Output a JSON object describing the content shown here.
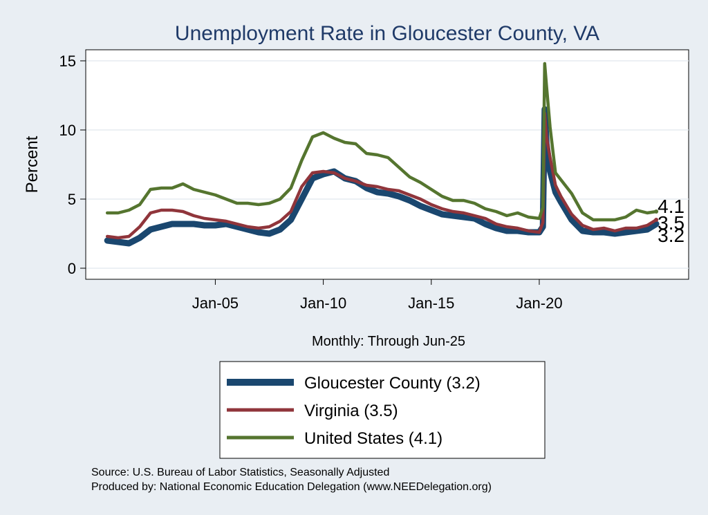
{
  "chart_data": {
    "type": "line",
    "title": "Unemployment Rate in Gloucester  County, VA",
    "ylabel": "Percent",
    "xnote": "Monthly: Through Jun-25",
    "x_ticks": [
      "Jan-05",
      "Jan-10",
      "Jan-15",
      "Jan-20"
    ],
    "y_ticks": [
      0,
      5,
      10,
      15
    ],
    "xlim": [
      "2000-01",
      "2025-06"
    ],
    "ylim": [
      -0.8,
      15.8
    ],
    "grid": true,
    "legend_position": "bottom",
    "source_lines": [
      "Source: U.S. Bureau of Labor Statistics, Seasonally Adjusted",
      "Produced by: National Economic Education Delegation (www.NEEDelegation.org)"
    ],
    "series": [
      {
        "name": "Gloucester  County (3.2)",
        "end_label": "3.2",
        "color": "#1a476f",
        "points": [
          [
            "2000-01",
            2.0
          ],
          [
            "2000-07",
            1.9
          ],
          [
            "2001-01",
            1.8
          ],
          [
            "2001-07",
            2.2
          ],
          [
            "2002-01",
            2.8
          ],
          [
            "2002-07",
            3.0
          ],
          [
            "2003-01",
            3.2
          ],
          [
            "2003-07",
            3.2
          ],
          [
            "2004-01",
            3.2
          ],
          [
            "2004-07",
            3.1
          ],
          [
            "2005-01",
            3.1
          ],
          [
            "2005-07",
            3.2
          ],
          [
            "2006-01",
            3.0
          ],
          [
            "2006-07",
            2.8
          ],
          [
            "2007-01",
            2.6
          ],
          [
            "2007-07",
            2.5
          ],
          [
            "2008-01",
            2.8
          ],
          [
            "2008-07",
            3.5
          ],
          [
            "2009-01",
            5.0
          ],
          [
            "2009-07",
            6.5
          ],
          [
            "2010-01",
            6.8
          ],
          [
            "2010-07",
            7.0
          ],
          [
            "2011-01",
            6.5
          ],
          [
            "2011-07",
            6.3
          ],
          [
            "2012-01",
            5.8
          ],
          [
            "2012-07",
            5.5
          ],
          [
            "2013-01",
            5.4
          ],
          [
            "2013-07",
            5.2
          ],
          [
            "2014-01",
            4.9
          ],
          [
            "2014-07",
            4.5
          ],
          [
            "2015-01",
            4.2
          ],
          [
            "2015-07",
            3.9
          ],
          [
            "2016-01",
            3.8
          ],
          [
            "2016-07",
            3.7
          ],
          [
            "2017-01",
            3.6
          ],
          [
            "2017-07",
            3.2
          ],
          [
            "2018-01",
            2.9
          ],
          [
            "2018-07",
            2.7
          ],
          [
            "2019-01",
            2.7
          ],
          [
            "2019-07",
            2.6
          ],
          [
            "2020-01",
            2.6
          ],
          [
            "2020-03",
            3.0
          ],
          [
            "2020-04",
            11.5
          ],
          [
            "2020-05",
            9.0
          ],
          [
            "2020-07",
            7.0
          ],
          [
            "2020-10",
            5.5
          ],
          [
            "2021-01",
            4.8
          ],
          [
            "2021-07",
            3.5
          ],
          [
            "2022-01",
            2.7
          ],
          [
            "2022-07",
            2.6
          ],
          [
            "2023-01",
            2.6
          ],
          [
            "2023-07",
            2.5
          ],
          [
            "2024-01",
            2.6
          ],
          [
            "2024-07",
            2.7
          ],
          [
            "2025-01",
            2.8
          ],
          [
            "2025-06",
            3.2
          ]
        ]
      },
      {
        "name": "Virginia (3.5)",
        "end_label": "3.5",
        "color": "#90353b",
        "points": [
          [
            "2000-01",
            2.3
          ],
          [
            "2000-07",
            2.2
          ],
          [
            "2001-01",
            2.3
          ],
          [
            "2001-07",
            3.0
          ],
          [
            "2002-01",
            4.0
          ],
          [
            "2002-07",
            4.2
          ],
          [
            "2003-01",
            4.2
          ],
          [
            "2003-07",
            4.1
          ],
          [
            "2004-01",
            3.8
          ],
          [
            "2004-07",
            3.6
          ],
          [
            "2005-01",
            3.5
          ],
          [
            "2005-07",
            3.4
          ],
          [
            "2006-01",
            3.2
          ],
          [
            "2006-07",
            3.0
          ],
          [
            "2007-01",
            2.9
          ],
          [
            "2007-07",
            3.0
          ],
          [
            "2008-01",
            3.4
          ],
          [
            "2008-07",
            4.1
          ],
          [
            "2009-01",
            5.9
          ],
          [
            "2009-07",
            6.9
          ],
          [
            "2010-01",
            7.0
          ],
          [
            "2010-07",
            6.9
          ],
          [
            "2011-01",
            6.5
          ],
          [
            "2011-07",
            6.3
          ],
          [
            "2012-01",
            6.0
          ],
          [
            "2012-07",
            5.9
          ],
          [
            "2013-01",
            5.7
          ],
          [
            "2013-07",
            5.6
          ],
          [
            "2014-01",
            5.3
          ],
          [
            "2014-07",
            5.0
          ],
          [
            "2015-01",
            4.6
          ],
          [
            "2015-07",
            4.3
          ],
          [
            "2016-01",
            4.1
          ],
          [
            "2016-07",
            4.0
          ],
          [
            "2017-01",
            3.8
          ],
          [
            "2017-07",
            3.6
          ],
          [
            "2018-01",
            3.2
          ],
          [
            "2018-07",
            3.0
          ],
          [
            "2019-01",
            2.9
          ],
          [
            "2019-07",
            2.7
          ],
          [
            "2020-01",
            2.6
          ],
          [
            "2020-03",
            3.3
          ],
          [
            "2020-04",
            11.2
          ],
          [
            "2020-05",
            9.5
          ],
          [
            "2020-07",
            8.0
          ],
          [
            "2020-10",
            6.0
          ],
          [
            "2021-01",
            5.2
          ],
          [
            "2021-07",
            3.9
          ],
          [
            "2022-01",
            3.1
          ],
          [
            "2022-07",
            2.8
          ],
          [
            "2023-01",
            2.9
          ],
          [
            "2023-07",
            2.7
          ],
          [
            "2024-01",
            2.9
          ],
          [
            "2024-07",
            2.9
          ],
          [
            "2025-01",
            3.1
          ],
          [
            "2025-06",
            3.5
          ]
        ]
      },
      {
        "name": "United States (4.1)",
        "end_label": "4.1",
        "color": "#55752f",
        "points": [
          [
            "2000-01",
            4.0
          ],
          [
            "2000-07",
            4.0
          ],
          [
            "2001-01",
            4.2
          ],
          [
            "2001-07",
            4.6
          ],
          [
            "2002-01",
            5.7
          ],
          [
            "2002-07",
            5.8
          ],
          [
            "2003-01",
            5.8
          ],
          [
            "2003-07",
            6.1
          ],
          [
            "2004-01",
            5.7
          ],
          [
            "2004-07",
            5.5
          ],
          [
            "2005-01",
            5.3
          ],
          [
            "2005-07",
            5.0
          ],
          [
            "2006-01",
            4.7
          ],
          [
            "2006-07",
            4.7
          ],
          [
            "2007-01",
            4.6
          ],
          [
            "2007-07",
            4.7
          ],
          [
            "2008-01",
            5.0
          ],
          [
            "2008-07",
            5.8
          ],
          [
            "2009-01",
            7.8
          ],
          [
            "2009-07",
            9.5
          ],
          [
            "2010-01",
            9.8
          ],
          [
            "2010-07",
            9.4
          ],
          [
            "2011-01",
            9.1
          ],
          [
            "2011-07",
            9.0
          ],
          [
            "2012-01",
            8.3
          ],
          [
            "2012-07",
            8.2
          ],
          [
            "2013-01",
            8.0
          ],
          [
            "2013-07",
            7.3
          ],
          [
            "2014-01",
            6.6
          ],
          [
            "2014-07",
            6.2
          ],
          [
            "2015-01",
            5.7
          ],
          [
            "2015-07",
            5.2
          ],
          [
            "2016-01",
            4.9
          ],
          [
            "2016-07",
            4.9
          ],
          [
            "2017-01",
            4.7
          ],
          [
            "2017-07",
            4.3
          ],
          [
            "2018-01",
            4.1
          ],
          [
            "2018-07",
            3.8
          ],
          [
            "2019-01",
            4.0
          ],
          [
            "2019-07",
            3.7
          ],
          [
            "2020-01",
            3.6
          ],
          [
            "2020-03",
            4.4
          ],
          [
            "2020-04",
            14.8
          ],
          [
            "2020-05",
            13.2
          ],
          [
            "2020-07",
            10.2
          ],
          [
            "2020-10",
            6.9
          ],
          [
            "2021-01",
            6.4
          ],
          [
            "2021-07",
            5.4
          ],
          [
            "2022-01",
            4.0
          ],
          [
            "2022-07",
            3.5
          ],
          [
            "2023-01",
            3.5
          ],
          [
            "2023-07",
            3.5
          ],
          [
            "2024-01",
            3.7
          ],
          [
            "2024-07",
            4.2
          ],
          [
            "2025-01",
            4.0
          ],
          [
            "2025-06",
            4.1
          ]
        ]
      }
    ]
  }
}
